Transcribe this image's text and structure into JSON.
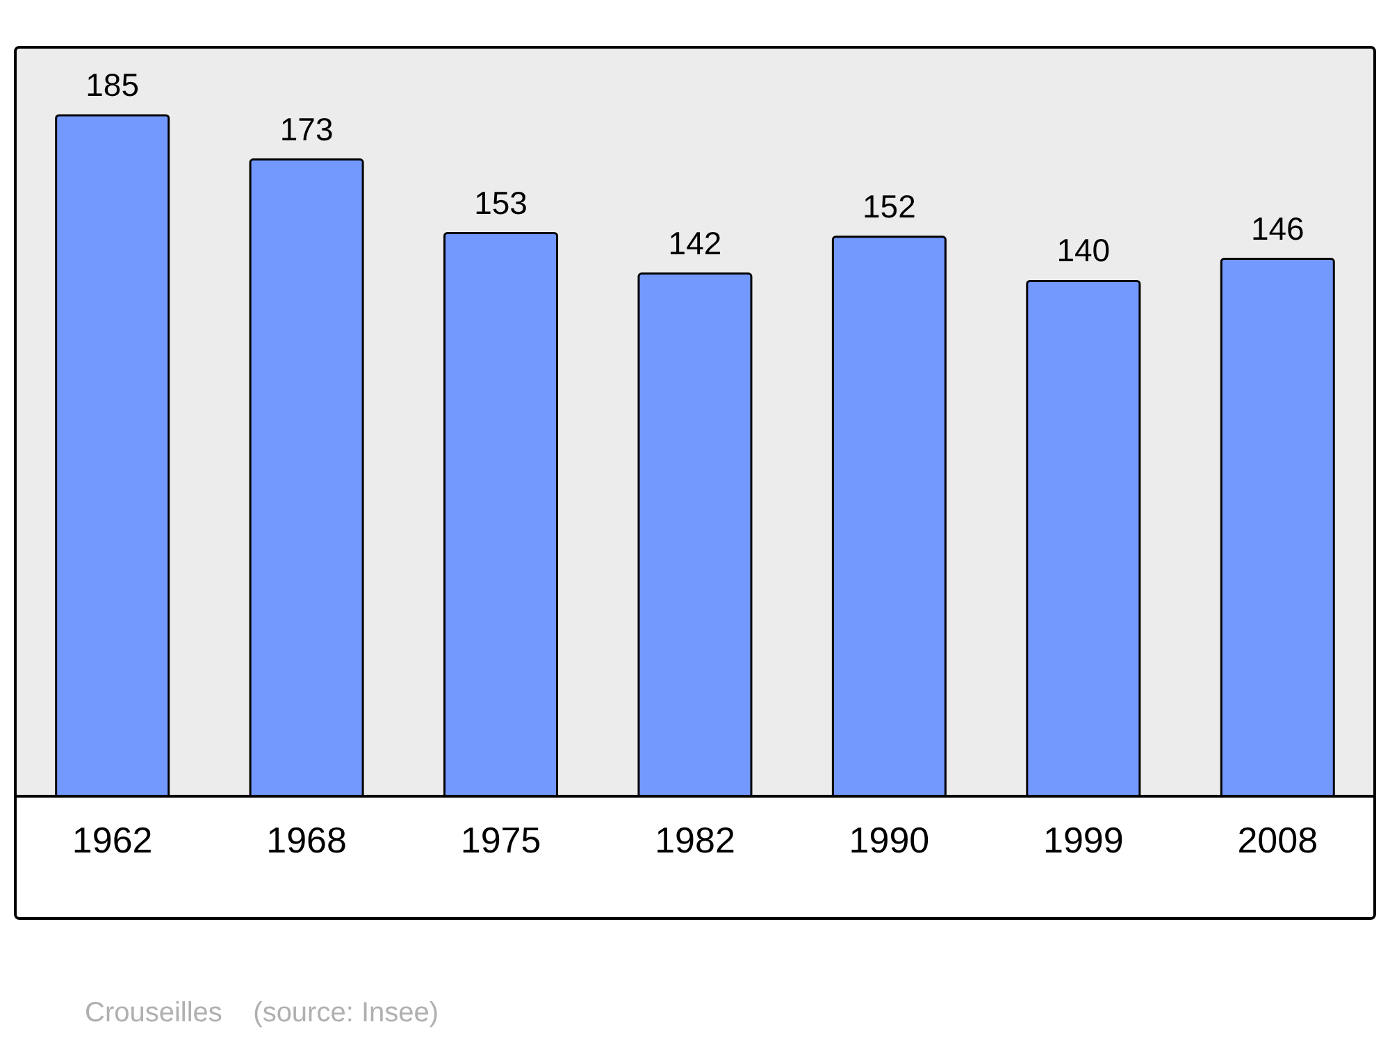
{
  "chart_data": {
    "type": "bar",
    "categories": [
      "1962",
      "1968",
      "1975",
      "1982",
      "1990",
      "1999",
      "2008"
    ],
    "values": [
      185,
      173,
      153,
      142,
      152,
      140,
      146
    ],
    "color": "#7399ff",
    "data_labels": true,
    "annotations": [
      "Crouseilles    (source: Insee)"
    ]
  }
}
